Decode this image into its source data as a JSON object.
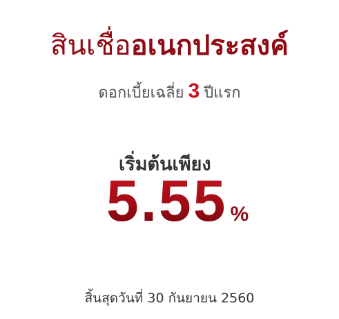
{
  "headline": {
    "part1": "สินเชื่อ",
    "part2": "อเนกประสงค์"
  },
  "subheadline": {
    "before": "ดอกเบี้ยเฉลี่ย",
    "highlight": "3",
    "after": "ปีแรก"
  },
  "offer": {
    "label": "เริ่มต้นเพียง",
    "rate": "5.55",
    "unit": "%"
  },
  "deadline": "สิ้นสุดวันที่ 30 กันยายน 2560",
  "colors": {
    "brand_red": "#8f0a14",
    "accent_red": "#cc1120",
    "text_gray": "#555555"
  }
}
